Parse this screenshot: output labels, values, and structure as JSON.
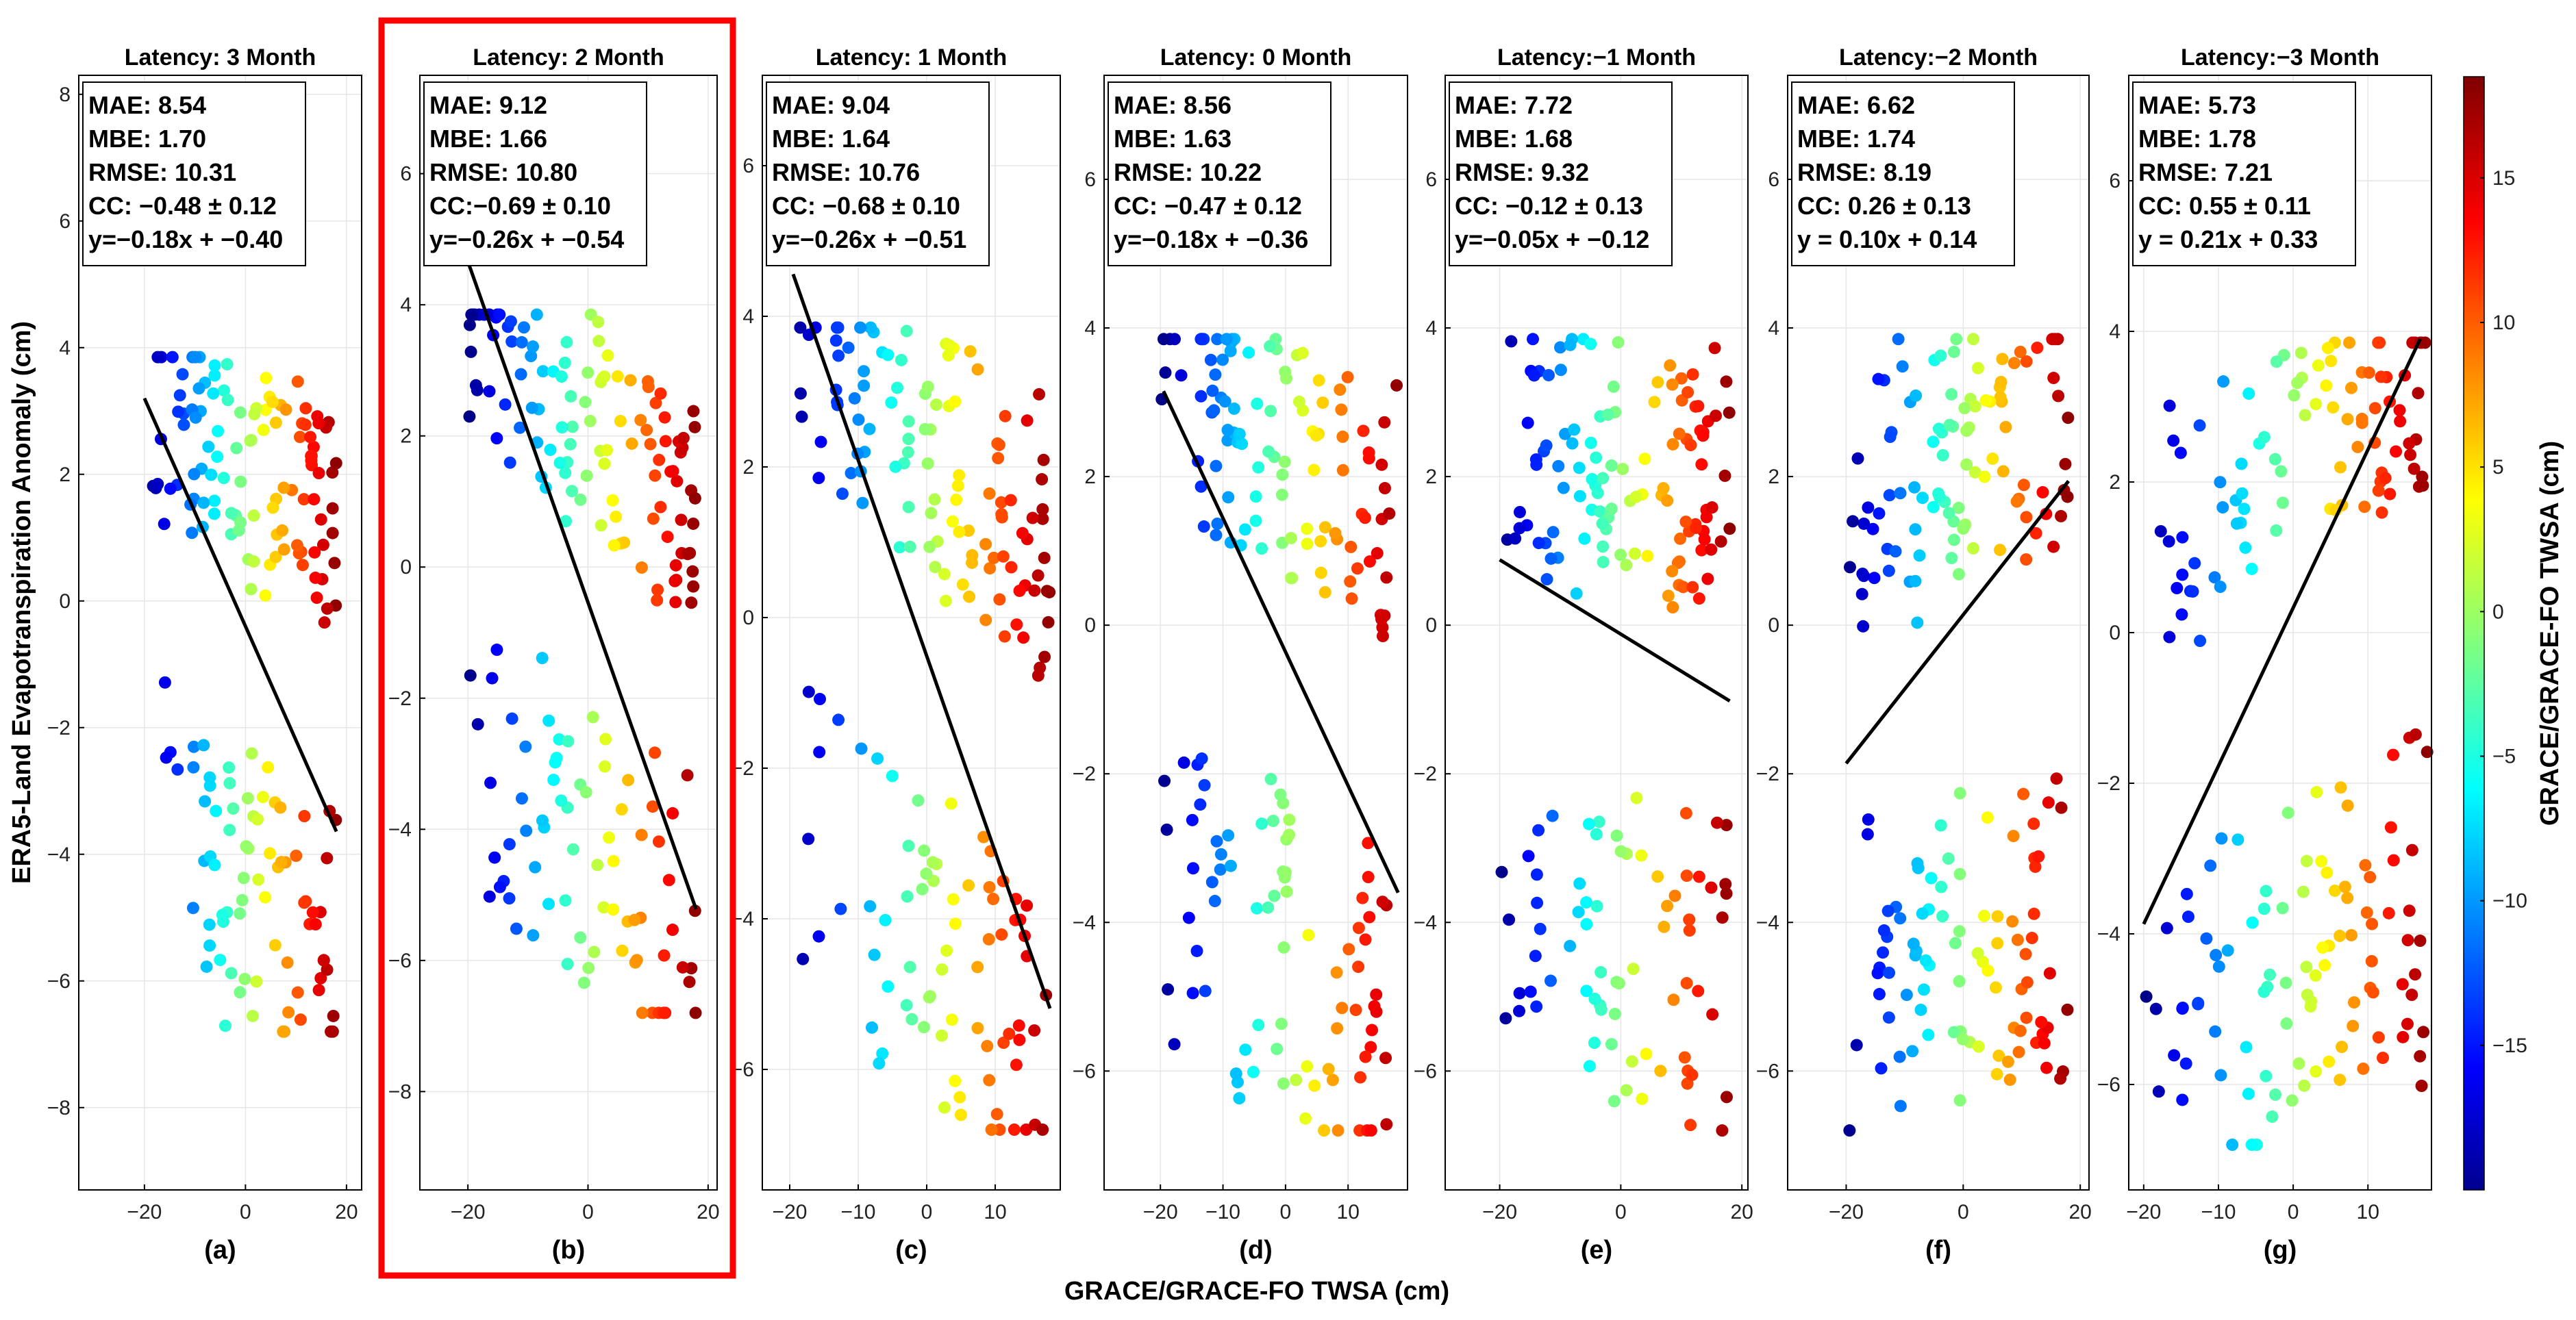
{
  "chart_data": {
    "type": "scatter",
    "figure": {
      "xlabel": "GRACE/GRACE-FO TWSA (cm)",
      "ylabel": "ERA5-Land Evapotranspiration Anomaly (cm)",
      "highlighted_panel": "(b)",
      "colorbar": {
        "label": "GRACE/GRACE-FO TWSA (cm)",
        "range": [
          -20,
          18.5
        ],
        "ticks": [
          -15,
          -10,
          -5,
          0,
          5,
          10,
          15
        ],
        "tick_labels": [
          "−15",
          "−10",
          "−5",
          "0",
          "5",
          "10",
          "15"
        ],
        "colormap": "jet"
      }
    },
    "panels": [
      {
        "id": "a",
        "caption": "(a)",
        "title": "Latency: 3 Month",
        "latency": 3,
        "xlim": [
          -33,
          23
        ],
        "ylim": [
          -9.3,
          8.3
        ],
        "xticks": [
          -20,
          0,
          20
        ],
        "xtick_labels": [
          "−20",
          "0",
          "20"
        ],
        "yticks": [
          -8,
          -6,
          -4,
          -2,
          0,
          2,
          4,
          6,
          8
        ],
        "ytick_labels": [
          "−8",
          "−6",
          "−4",
          "−2",
          "0",
          "2",
          "4",
          "6",
          "8"
        ],
        "stats": [
          "MAE: 8.54",
          "MBE: 1.70",
          "RMSE: 10.31",
          "CC: −0.48 ± 0.12",
          "y=−0.18x + −0.40"
        ],
        "fit": {
          "slope": -0.18,
          "intercept": -0.4,
          "x0": -20,
          "x1": 18
        },
        "n_points": 190,
        "seed": 11,
        "cc": -0.48
      },
      {
        "id": "b",
        "caption": "(b)",
        "title": "Latency: 2 Month",
        "latency": 2,
        "xlim": [
          -28,
          21.5
        ],
        "ylim": [
          -9.5,
          7.5
        ],
        "xticks": [
          -20,
          0,
          20
        ],
        "xtick_labels": [
          "−20",
          "0",
          "20"
        ],
        "yticks": [
          -8,
          -6,
          -4,
          -2,
          0,
          2,
          4,
          6
        ],
        "ytick_labels": [
          "−8",
          "−6",
          "−4",
          "−2",
          "0",
          "2",
          "4",
          "6"
        ],
        "stats": [
          "MAE: 9.12",
          "MBE: 1.66",
          "RMSE: 10.80",
          "CC:−0.69 ± 0.10",
          "y=−0.26x + −0.54"
        ],
        "fit": {
          "slope": -0.26,
          "intercept": -0.54,
          "x0": -20,
          "x1": 18
        },
        "n_points": 190,
        "seed": 22,
        "cc": -0.69
      },
      {
        "id": "c",
        "caption": "(c)",
        "title": "Latency: 1 Month",
        "latency": 1,
        "xlim": [
          -24,
          19.5
        ],
        "ylim": [
          -7.6,
          7.2
        ],
        "xticks": [
          -20,
          -10,
          0,
          10
        ],
        "xtick_labels": [
          "−20",
          "−10",
          "0",
          "10"
        ],
        "yticks": [
          -6,
          -4,
          -2,
          0,
          2,
          4,
          6
        ],
        "ytick_labels": [
          "−6",
          "−4",
          "−2",
          "0",
          "2",
          "4",
          "6"
        ],
        "stats": [
          "MAE: 9.04",
          "MBE: 1.64",
          "RMSE: 10.76",
          "CC: −0.68 ± 0.10",
          "y=−0.26x + −0.51"
        ],
        "fit": {
          "slope": -0.26,
          "intercept": -0.51,
          "x0": -19.5,
          "x1": 18
        },
        "n_points": 190,
        "seed": 33,
        "cc": -0.68
      },
      {
        "id": "d",
        "caption": "(d)",
        "title": "Latency: 0 Month",
        "latency": 0,
        "xlim": [
          -29,
          19.5
        ],
        "ylim": [
          -7.6,
          7.4
        ],
        "xticks": [
          -20,
          -10,
          0,
          10
        ],
        "xtick_labels": [
          "−20",
          "−10",
          "0",
          "10"
        ],
        "yticks": [
          -6,
          -4,
          -2,
          0,
          2,
          4,
          6
        ],
        "ytick_labels": [
          "−6",
          "−4",
          "−2",
          "0",
          "2",
          "4",
          "6"
        ],
        "stats": [
          "MAE: 8.56",
          "MBE: 1.63",
          "RMSE: 10.22",
          "CC: −0.47 ± 0.12",
          "y=−0.18x + −0.36"
        ],
        "fit": {
          "slope": -0.18,
          "intercept": -0.36,
          "x0": -19.5,
          "x1": 18
        },
        "n_points": 190,
        "seed": 44,
        "cc": -0.47
      },
      {
        "id": "e",
        "caption": "(e)",
        "title": "Latency:−1 Month",
        "latency": -1,
        "xlim": [
          -29,
          21
        ],
        "ylim": [
          -7.6,
          7.4
        ],
        "xticks": [
          -20,
          0,
          20
        ],
        "xtick_labels": [
          "−20",
          "0",
          "20"
        ],
        "yticks": [
          -6,
          -4,
          -2,
          0,
          2,
          4,
          6
        ],
        "ytick_labels": [
          "−6",
          "−4",
          "−2",
          "0",
          "2",
          "4",
          "6"
        ],
        "stats": [
          "MAE: 7.72",
          "MBE: 1.68",
          "RMSE: 9.32",
          "CC: −0.12 ± 0.13",
          "y=−0.05x + −0.12"
        ],
        "fit": {
          "slope": -0.05,
          "intercept": -0.12,
          "x0": -20,
          "x1": 18
        },
        "n_points": 190,
        "seed": 55,
        "cc": -0.12
      },
      {
        "id": "f",
        "caption": "(f)",
        "title": "Latency:−2 Month",
        "latency": -2,
        "xlim": [
          -30,
          21.5
        ],
        "ylim": [
          -7.6,
          7.4
        ],
        "xticks": [
          -20,
          0,
          20
        ],
        "xtick_labels": [
          "−20",
          "0",
          "20"
        ],
        "yticks": [
          -6,
          -4,
          -2,
          0,
          2,
          4,
          6
        ],
        "ytick_labels": [
          "−6",
          "−4",
          "−2",
          "0",
          "2",
          "4",
          "6"
        ],
        "stats": [
          "MAE: 6.62",
          "MBE: 1.74",
          "RMSE: 8.19",
          "CC: 0.26 ± 0.13",
          "y = 0.10x + 0.14"
        ],
        "fit": {
          "slope": 0.1,
          "intercept": 0.14,
          "x0": -20,
          "x1": 18
        },
        "n_points": 190,
        "seed": 66,
        "cc": 0.26
      },
      {
        "id": "g",
        "caption": "(g)",
        "title": "Latency:−3 Month",
        "latency": -3,
        "xlim": [
          -22,
          18.5
        ],
        "ylim": [
          -7.4,
          7.4
        ],
        "xticks": [
          -20,
          -10,
          0,
          10
        ],
        "xtick_labels": [
          "−20",
          "−10",
          "0",
          "10"
        ],
        "yticks": [
          -6,
          -4,
          -2,
          0,
          2,
          4,
          6
        ],
        "ytick_labels": [
          "−6",
          "−4",
          "−2",
          "0",
          "2",
          "4",
          "6"
        ],
        "stats": [
          "MAE: 5.73",
          "MBE: 1.78",
          "RMSE: 7.21",
          "CC: 0.55 ± 0.11",
          "y = 0.21x + 0.33"
        ],
        "fit": {
          "slope": 0.21,
          "intercept": 0.33,
          "x0": -20,
          "x1": 17
        },
        "n_points": 190,
        "seed": 77,
        "cc": 0.55
      }
    ]
  },
  "colors": {
    "highlight_box": "#ff0000",
    "fit_line": "#000000",
    "grid": "#e6e6e6"
  }
}
